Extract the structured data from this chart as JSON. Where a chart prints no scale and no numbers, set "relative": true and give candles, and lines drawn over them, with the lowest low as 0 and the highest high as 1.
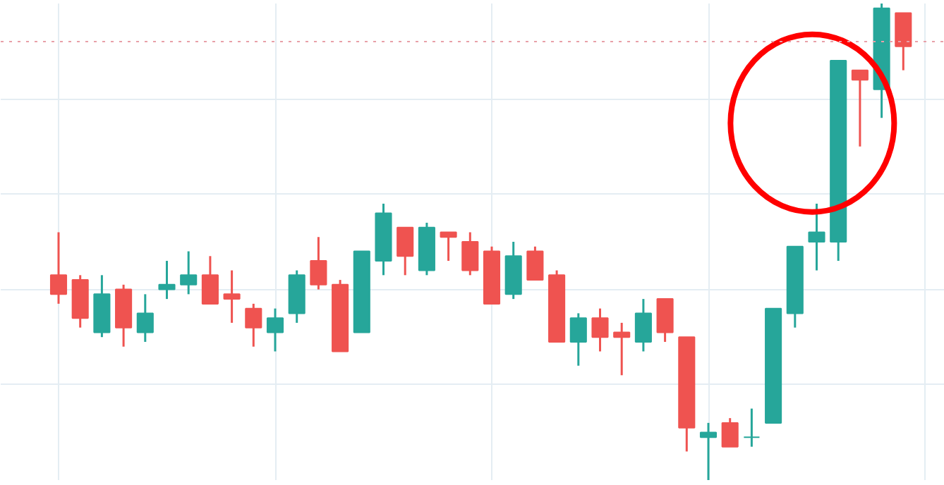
{
  "chart_data": {
    "type": "candlestick",
    "relative": true,
    "grid": true,
    "categories": [
      null,
      null,
      null,
      null,
      null,
      null,
      null,
      null,
      null,
      null,
      null,
      null,
      null,
      null,
      null,
      null,
      null,
      null,
      null,
      null,
      null,
      null,
      null,
      null,
      null,
      null,
      null,
      null,
      null,
      null,
      null,
      null,
      null,
      null,
      null,
      null,
      null,
      null,
      null,
      null
    ],
    "ohlc": [
      [
        0.43,
        0.52,
        0.37,
        0.39
      ],
      [
        0.42,
        0.43,
        0.32,
        0.34
      ],
      [
        0.31,
        0.43,
        0.3,
        0.39
      ],
      [
        0.4,
        0.41,
        0.28,
        0.32
      ],
      [
        0.31,
        0.39,
        0.29,
        0.35
      ],
      [
        0.4,
        0.46,
        0.38,
        0.41
      ],
      [
        0.41,
        0.48,
        0.39,
        0.43
      ],
      [
        0.43,
        0.47,
        0.37,
        0.37
      ],
      [
        0.39,
        0.44,
        0.33,
        0.38
      ],
      [
        0.36,
        0.37,
        0.28,
        0.32
      ],
      [
        0.31,
        0.36,
        0.27,
        0.34
      ],
      [
        0.35,
        0.44,
        0.33,
        0.43
      ],
      [
        0.46,
        0.51,
        0.4,
        0.41
      ],
      [
        0.41,
        0.42,
        0.27,
        0.27
      ],
      [
        0.31,
        0.48,
        0.31,
        0.48
      ],
      [
        0.46,
        0.58,
        0.43,
        0.56
      ],
      [
        0.53,
        0.53,
        0.43,
        0.47
      ],
      [
        0.44,
        0.54,
        0.43,
        0.53
      ],
      [
        0.52,
        0.52,
        0.46,
        0.51
      ],
      [
        0.5,
        0.52,
        0.43,
        0.44
      ],
      [
        0.48,
        0.49,
        0.37,
        0.37
      ],
      [
        0.39,
        0.5,
        0.38,
        0.47
      ],
      [
        0.48,
        0.49,
        0.42,
        0.42
      ],
      [
        0.43,
        0.44,
        0.29,
        0.29
      ],
      [
        0.29,
        0.35,
        0.24,
        0.34
      ],
      [
        0.34,
        0.36,
        0.27,
        0.3
      ],
      [
        0.31,
        0.33,
        0.22,
        0.3
      ],
      [
        0.29,
        0.38,
        0.27,
        0.35
      ],
      [
        0.38,
        0.38,
        0.29,
        0.31
      ],
      [
        0.3,
        0.3,
        0.06,
        0.11
      ],
      [
        0.09,
        0.12,
        0.0,
        0.1
      ],
      [
        0.12,
        0.13,
        0.07,
        0.07
      ],
      [
        0.09,
        0.15,
        0.07,
        0.09
      ],
      [
        0.12,
        0.36,
        0.12,
        0.36
      ],
      [
        0.35,
        0.49,
        0.32,
        0.49
      ],
      [
        0.5,
        0.58,
        0.44,
        0.52
      ],
      [
        0.5,
        0.88,
        0.46,
        0.88
      ],
      [
        0.86,
        0.86,
        0.7,
        0.84
      ],
      [
        0.82,
        1.0,
        0.76,
        0.99
      ],
      [
        0.98,
        0.98,
        0.86,
        0.91
      ]
    ],
    "colors": [
      "#ef5350",
      "#ef5350",
      "#26a69a",
      "#ef5350",
      "#26a69a",
      "#26a69a",
      "#26a69a",
      "#ef5350",
      "#ef5350",
      "#ef5350",
      "#26a69a",
      "#26a69a",
      "#ef5350",
      "#ef5350",
      "#26a69a",
      "#26a69a",
      "#ef5350",
      "#26a69a",
      "#ef5350",
      "#ef5350",
      "#ef5350",
      "#26a69a",
      "#ef5350",
      "#ef5350",
      "#26a69a",
      "#ef5350",
      "#ef5350",
      "#26a69a",
      "#ef5350",
      "#ef5350",
      "#26a69a",
      "#ef5350",
      "#26a69a",
      "#26a69a",
      "#26a69a",
      "#26a69a",
      "#26a69a",
      "#ef5350",
      "#26a69a",
      "#ef5350"
    ],
    "ref_lines": [
      {
        "axis": "y",
        "value": 0.92,
        "label": null,
        "color": "#e8a0a8",
        "line_style": "dotted"
      }
    ]
  }
}
